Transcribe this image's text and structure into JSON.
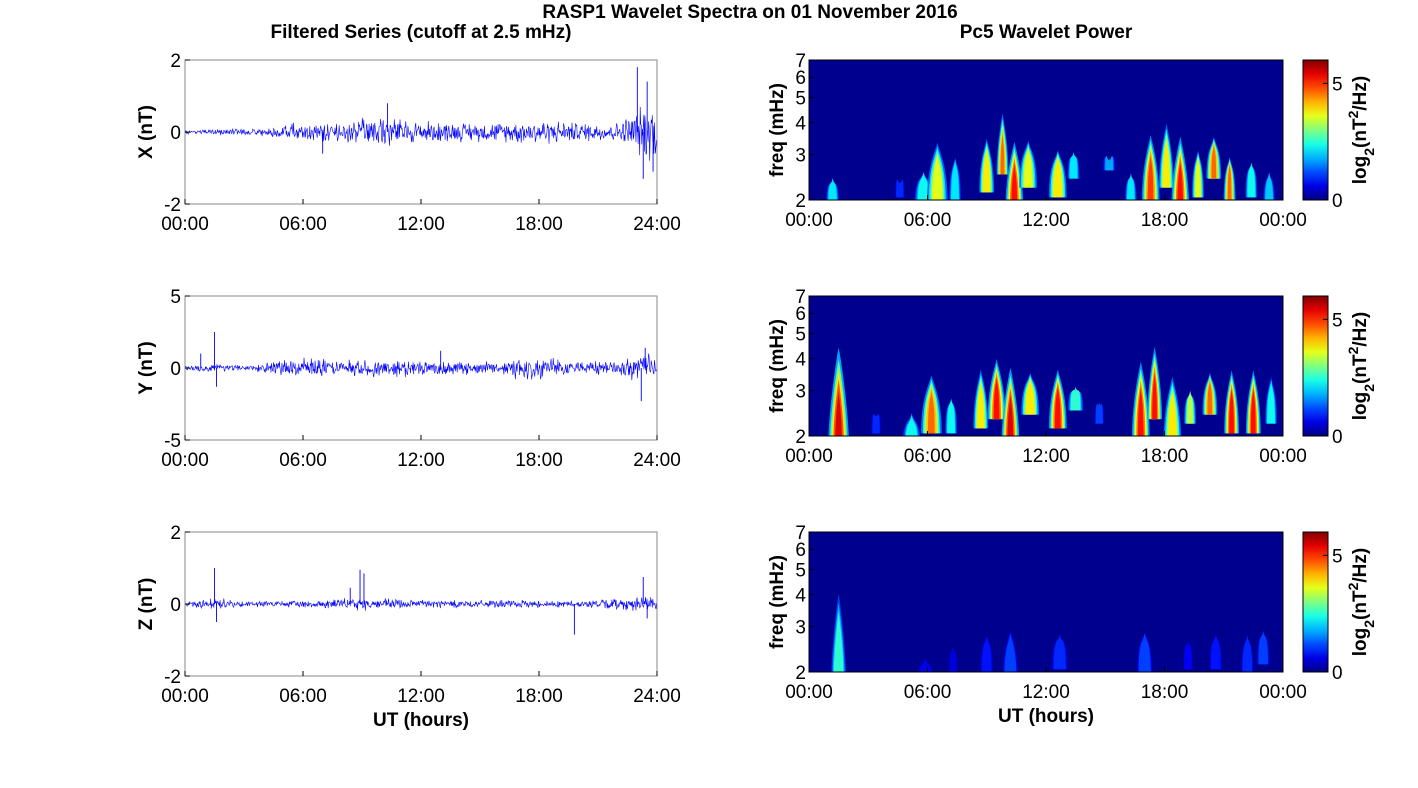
{
  "figure": {
    "title": "RASP1 Wavelet Spectra on 01 November 2016",
    "left_title": "Filtered Series (cutoff at 2.5 mHz)",
    "right_title": "Pc5 Wavelet Power"
  },
  "colors": {
    "trace": "#0000ff",
    "axis": "#000000",
    "background_spectrum": "#00008f"
  },
  "chart_data": [
    {
      "type": "line",
      "panel": "X-series",
      "ylabel": "X (nT)",
      "ylim": [
        -2,
        2
      ],
      "yticks": [
        "-2",
        "0",
        "2"
      ],
      "xticks": [
        "00:00",
        "06:00",
        "12:00",
        "18:00",
        "24:00"
      ],
      "xlabel": "",
      "envelope": [
        [
          0,
          0.08
        ],
        [
          2,
          0.1
        ],
        [
          4,
          0.15
        ],
        [
          6,
          0.3
        ],
        [
          8,
          0.3
        ],
        [
          10,
          0.5
        ],
        [
          12,
          0.35
        ],
        [
          14,
          0.3
        ],
        [
          16,
          0.3
        ],
        [
          18,
          0.4
        ],
        [
          20,
          0.3
        ],
        [
          22,
          0.3
        ],
        [
          23.2,
          0.8
        ],
        [
          24,
          1.0
        ]
      ],
      "spikes": [
        [
          23.0,
          1.8
        ],
        [
          23.3,
          -1.3
        ],
        [
          23.5,
          1.4
        ],
        [
          23.8,
          -1.1
        ],
        [
          10.3,
          0.8
        ],
        [
          7.0,
          -0.6
        ]
      ]
    },
    {
      "type": "line",
      "panel": "Y-series",
      "ylabel": "Y (nT)",
      "ylim": [
        -5,
        5
      ],
      "yticks": [
        "-5",
        "0",
        "5"
      ],
      "xticks": [
        "00:00",
        "06:00",
        "12:00",
        "18:00",
        "24:00"
      ],
      "xlabel": "",
      "envelope": [
        [
          0,
          0.2
        ],
        [
          1.5,
          0.4
        ],
        [
          3,
          0.2
        ],
        [
          6,
          0.8
        ],
        [
          8,
          0.6
        ],
        [
          10,
          0.8
        ],
        [
          12,
          0.6
        ],
        [
          14,
          0.5
        ],
        [
          16,
          0.5
        ],
        [
          17,
          1.0
        ],
        [
          20,
          0.5
        ],
        [
          22,
          0.6
        ],
        [
          23.5,
          1.2
        ],
        [
          24,
          0.8
        ]
      ],
      "spikes": [
        [
          1.5,
          2.5
        ],
        [
          1.6,
          -1.3
        ],
        [
          0.8,
          1.0
        ],
        [
          23.2,
          -2.3
        ],
        [
          23.4,
          1.4
        ],
        [
          13,
          1.2
        ]
      ]
    },
    {
      "type": "line",
      "panel": "Z-series",
      "ylabel": "Z (nT)",
      "ylim": [
        -2,
        2
      ],
      "yticks": [
        "-2",
        "0",
        "2"
      ],
      "xticks": [
        "00:00",
        "06:00",
        "12:00",
        "18:00",
        "24:00"
      ],
      "xlabel": "UT (hours)",
      "envelope": [
        [
          0,
          0.06
        ],
        [
          1.5,
          0.2
        ],
        [
          3,
          0.08
        ],
        [
          6,
          0.12
        ],
        [
          9,
          0.2
        ],
        [
          12,
          0.15
        ],
        [
          15,
          0.12
        ],
        [
          18,
          0.12
        ],
        [
          20,
          0.1
        ],
        [
          23.5,
          0.25
        ],
        [
          24,
          0.15
        ]
      ],
      "spikes": [
        [
          1.5,
          1.0
        ],
        [
          1.6,
          -0.5
        ],
        [
          8.9,
          0.95
        ],
        [
          9.1,
          0.85
        ],
        [
          8.4,
          0.45
        ],
        [
          19.8,
          -0.85
        ],
        [
          23.3,
          0.75
        ],
        [
          23.5,
          -0.4
        ]
      ]
    },
    {
      "type": "heatmap",
      "panel": "X-wavelet",
      "ylabel": "freq (mHz)",
      "yscale": "log",
      "ylim": [
        2,
        7
      ],
      "yticks": [
        "2",
        "3",
        "4",
        "5",
        "6",
        "7"
      ],
      "xticks": [
        "00:00",
        "06:00",
        "12:00",
        "18:00",
        "00:00"
      ],
      "xlabel": "",
      "colorbar": {
        "label": "log2(nT2/Hz)",
        "range": [
          0,
          6
        ],
        "ticks": [
          "0",
          "5"
        ]
      },
      "blobs": [
        [
          1.2,
          2.5,
          0.22,
          2.4,
          0.55
        ],
        [
          4.6,
          2.8,
          0.15,
          2.2,
          0.35
        ],
        [
          5.8,
          2.5,
          0.3,
          2.6,
          0.6
        ],
        [
          6.5,
          2.7,
          0.35,
          3.5,
          0.75
        ],
        [
          7.4,
          2.7,
          0.2,
          3.0,
          0.55
        ],
        [
          9,
          2.9,
          0.25,
          3.6,
          0.8
        ],
        [
          9.8,
          3.3,
          0.2,
          4.6,
          0.85
        ],
        [
          10.4,
          2.5,
          0.3,
          3.6,
          0.95
        ],
        [
          11.1,
          3.0,
          0.3,
          3.5,
          0.75
        ],
        [
          12.6,
          2.8,
          0.3,
          3.2,
          0.8
        ],
        [
          13.4,
          3.2,
          0.2,
          3.0,
          0.55
        ],
        [
          15.2,
          3.4,
          0.2,
          2.6,
          0.45
        ],
        [
          16.3,
          2.6,
          0.2,
          2.5,
          0.55
        ],
        [
          17.3,
          2.7,
          0.3,
          3.8,
          0.9
        ],
        [
          18.1,
          3.0,
          0.25,
          4.2,
          0.8
        ],
        [
          18.8,
          2.5,
          0.3,
          3.8,
          0.95
        ],
        [
          19.7,
          2.8,
          0.2,
          3.2,
          0.75
        ],
        [
          20.5,
          3.2,
          0.25,
          3.6,
          0.85
        ],
        [
          21.3,
          2.7,
          0.2,
          3.0,
          0.85
        ],
        [
          22.4,
          2.8,
          0.2,
          2.8,
          0.6
        ],
        [
          23.3,
          2.5,
          0.2,
          2.6,
          0.5
        ]
      ]
    },
    {
      "type": "heatmap",
      "panel": "Y-wavelet",
      "ylabel": "freq (mHz)",
      "yscale": "log",
      "ylim": [
        2,
        7
      ],
      "yticks": [
        "2",
        "3",
        "4",
        "5",
        "6",
        "7"
      ],
      "xticks": [
        "00:00",
        "06:00",
        "12:00",
        "18:00",
        "00:00"
      ],
      "xlabel": "",
      "colorbar": {
        "label": "log2(nT2/Hz)",
        "range": [
          0,
          6
        ],
        "ticks": [
          "0",
          "5"
        ]
      },
      "blobs": [
        [
          1.5,
          2.4,
          0.35,
          5.0,
          1.0
        ],
        [
          3.4,
          2.8,
          0.15,
          2.3,
          0.35
        ],
        [
          5.2,
          2.3,
          0.3,
          2.5,
          0.6
        ],
        [
          6.2,
          2.8,
          0.35,
          3.6,
          0.85
        ],
        [
          7.2,
          2.8,
          0.2,
          2.8,
          0.6
        ],
        [
          8.7,
          2.9,
          0.25,
          3.8,
          0.8
        ],
        [
          9.5,
          3.1,
          0.3,
          4.2,
          0.95
        ],
        [
          10.2,
          2.5,
          0.3,
          4.0,
          1.0
        ],
        [
          11.2,
          3.2,
          0.3,
          3.6,
          0.8
        ],
        [
          12.6,
          2.9,
          0.3,
          3.8,
          0.95
        ],
        [
          13.5,
          3.3,
          0.25,
          3.0,
          0.65
        ],
        [
          14.7,
          3.0,
          0.15,
          2.6,
          0.4
        ],
        [
          16.8,
          2.7,
          0.3,
          4.2,
          0.95
        ],
        [
          17.5,
          3.1,
          0.25,
          4.8,
          0.95
        ],
        [
          18.4,
          2.6,
          0.3,
          3.6,
          0.8
        ],
        [
          19.3,
          3.0,
          0.2,
          3.0,
          0.7
        ],
        [
          20.3,
          3.2,
          0.25,
          3.6,
          0.85
        ],
        [
          21.4,
          2.8,
          0.25,
          3.8,
          0.95
        ],
        [
          22.5,
          2.8,
          0.25,
          3.8,
          0.95
        ],
        [
          23.4,
          3.0,
          0.2,
          3.5,
          0.6
        ]
      ]
    },
    {
      "type": "heatmap",
      "panel": "Z-wavelet",
      "ylabel": "freq (mHz)",
      "yscale": "log",
      "ylim": [
        2,
        7
      ],
      "yticks": [
        "2",
        "3",
        "4",
        "5",
        "6",
        "7"
      ],
      "xticks": [
        "00:00",
        "06:00",
        "12:00",
        "18:00",
        "00:00"
      ],
      "xlabel": "UT (hours)",
      "colorbar": {
        "label": "log2(nT2/Hz)",
        "range": [
          0,
          6
        ],
        "ticks": [
          "0",
          "5"
        ]
      },
      "blobs": [
        [
          1.5,
          2.4,
          0.25,
          4.5,
          0.65
        ],
        [
          5.9,
          2.2,
          0.25,
          2.3,
          0.25
        ],
        [
          7.3,
          2.6,
          0.15,
          2.5,
          0.2
        ],
        [
          9.0,
          2.7,
          0.2,
          2.8,
          0.3
        ],
        [
          10.2,
          2.5,
          0.25,
          3.0,
          0.4
        ],
        [
          12.7,
          2.8,
          0.25,
          2.8,
          0.35
        ],
        [
          17.0,
          2.7,
          0.25,
          2.9,
          0.4
        ],
        [
          19.2,
          2.8,
          0.15,
          2.6,
          0.25
        ],
        [
          20.6,
          2.8,
          0.2,
          2.8,
          0.3
        ],
        [
          22.2,
          2.7,
          0.2,
          2.8,
          0.35
        ],
        [
          23.0,
          2.9,
          0.2,
          2.9,
          0.4
        ]
      ]
    }
  ]
}
